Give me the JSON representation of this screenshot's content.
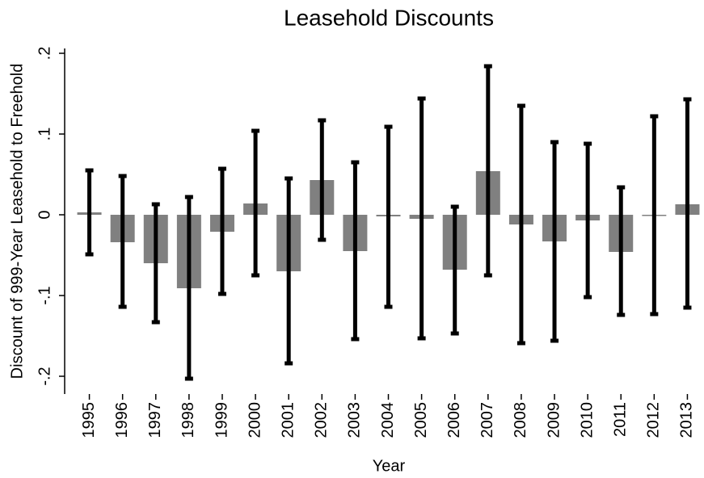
{
  "chart_data": {
    "type": "bar",
    "title": "Leasehold Discounts",
    "x_label": "Year",
    "y_label": "Discount of 999-Year Leasehold to Freehold",
    "categories": [
      "1995",
      "1996",
      "1997",
      "1998",
      "1999",
      "2000",
      "2001",
      "2002",
      "2003",
      "2004",
      "2005",
      "2006",
      "2007",
      "2008",
      "2009",
      "2010",
      "2011",
      "2012",
      "2013"
    ],
    "values": [
      0.003,
      -0.034,
      -0.06,
      -0.091,
      -0.021,
      0.014,
      -0.07,
      0.043,
      -0.045,
      -0.002,
      -0.005,
      -0.068,
      0.054,
      -0.012,
      -0.033,
      -0.007,
      -0.046,
      -0.001,
      0.013
    ],
    "ci_low": [
      -0.049,
      -0.114,
      -0.133,
      -0.203,
      -0.098,
      -0.075,
      -0.184,
      -0.031,
      -0.154,
      -0.114,
      -0.153,
      -0.147,
      -0.075,
      -0.159,
      -0.156,
      -0.102,
      -0.124,
      -0.123,
      -0.115
    ],
    "ci_high": [
      0.055,
      0.048,
      0.013,
      0.022,
      0.057,
      0.104,
      0.045,
      0.117,
      0.065,
      0.109,
      0.144,
      0.01,
      0.184,
      0.135,
      0.09,
      0.088,
      0.034,
      0.122,
      0.143
    ],
    "color": "#808080",
    "error_color": "#000000",
    "ylim": [
      -0.222,
      0.206
    ],
    "yticks": [
      {
        "value": -0.2,
        "label": "-.2"
      },
      {
        "value": -0.1,
        "label": "-.1"
      },
      0,
      {
        "value": 0.1,
        "label": ".1"
      },
      {
        "value": 0.2,
        "label": ".2"
      }
    ]
  }
}
